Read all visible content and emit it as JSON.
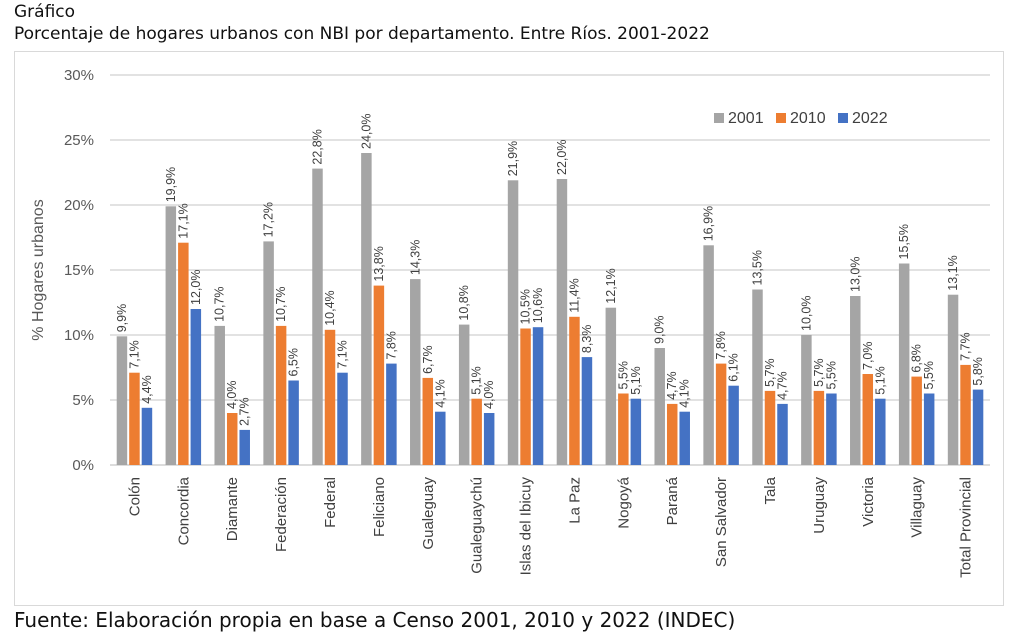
{
  "header": {
    "label": "Gráfico",
    "title": "Porcentaje de hogares urbanos con NBI por departamento. Entre Ríos. 2001-2022"
  },
  "source": "Fuente: Elaboración propia en base a Censo 2001, 2010 y 2022 (INDEC)",
  "colors": {
    "2001": "#a5a5a5",
    "2010": "#ed7d31",
    "2022": "#4472c4"
  },
  "chart_data": {
    "type": "bar",
    "title": "Porcentaje de hogares urbanos con NBI por departamento. Entre Ríos. 2001-2022",
    "xlabel": "",
    "ylabel": "% Hogares urbanos",
    "ylim": [
      0,
      30
    ],
    "yticks": [
      0,
      5,
      10,
      15,
      20,
      25,
      30
    ],
    "ytick_labels": [
      "0%",
      "5%",
      "10%",
      "15%",
      "20%",
      "25%",
      "30%"
    ],
    "grid": true,
    "legend_position": "top-right",
    "categories": [
      "Colón",
      "Concordia",
      "Diamante",
      "Federación",
      "Federal",
      "Feliciano",
      "Gualeguay",
      "Gualeguaychú",
      "Islas del Ibicuy",
      "La Paz",
      "Nogoyá",
      "Paraná",
      "San Salvador",
      "Tala",
      "Uruguay",
      "Victoria",
      "Villaguay",
      "Total Provincial"
    ],
    "series": [
      {
        "name": "2001",
        "values": [
          9.9,
          19.9,
          10.7,
          17.2,
          22.8,
          24.0,
          14.3,
          10.8,
          21.9,
          22.0,
          12.1,
          9.0,
          16.9,
          13.5,
          10.0,
          13.0,
          15.5,
          13.1
        ],
        "labels": [
          "9,9%",
          "19,9%",
          "10,7%",
          "17,2%",
          "22,8%",
          "24,0%",
          "14,3%",
          "10,8%",
          "21,9%",
          "22,0%",
          "12,1%",
          "9,0%",
          "16,9%",
          "13,5%",
          "10,0%",
          "13,0%",
          "15,5%",
          "13,1%"
        ]
      },
      {
        "name": "2010",
        "values": [
          7.1,
          17.1,
          4.0,
          10.7,
          10.4,
          13.8,
          6.7,
          5.1,
          10.5,
          11.4,
          5.5,
          4.7,
          7.8,
          5.7,
          5.7,
          7.0,
          6.8,
          7.7
        ],
        "labels": [
          "7,1%",
          "17,1%",
          "4,0%",
          "10,7%",
          "10,4%",
          "13,8%",
          "6,7%",
          "5,1%",
          "10,5%",
          "11,4%",
          "5,5%",
          "4,7%",
          "7,8%",
          "5,7%",
          "5,7%",
          "7,0%",
          "6,8%",
          "7,7%"
        ]
      },
      {
        "name": "2022",
        "values": [
          4.4,
          12.0,
          2.7,
          6.5,
          7.1,
          7.8,
          4.1,
          4.0,
          10.6,
          8.3,
          5.1,
          4.1,
          6.1,
          4.7,
          5.5,
          5.1,
          5.5,
          5.8
        ],
        "labels": [
          "4,4%",
          "12,0%",
          "2,7%",
          "6,5%",
          "7,1%",
          "7,8%",
          "4,1%",
          "4,0%",
          "10,6%",
          "8,3%",
          "5,1%",
          "4,1%",
          "6,1%",
          "4,7%",
          "5,5%",
          "5,1%",
          "5,5%",
          "5,8%"
        ]
      }
    ]
  }
}
